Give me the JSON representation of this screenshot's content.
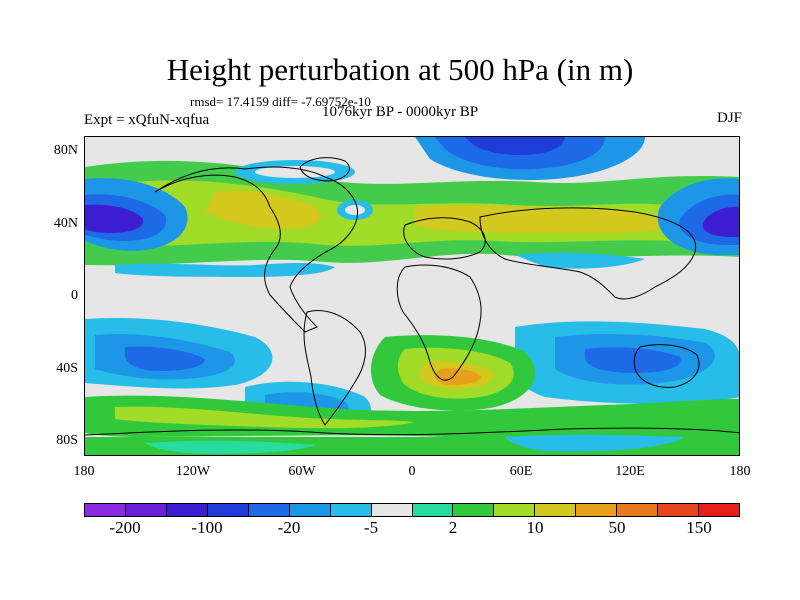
{
  "figure": {
    "title": "Height perturbation at 500 hPa (in m)",
    "stats": "rmsd= 17.4159 diff= -7.69752e-10",
    "experiment": "Expt = xQfuN-xqfua",
    "period": "1076kyr BP - 0000kyr BP",
    "season": "DJF"
  },
  "map": {
    "x_ticks": [
      "180",
      "120W",
      "60W",
      "0",
      "60E",
      "120E",
      "180"
    ],
    "y_ticks": [
      "80N",
      "40N",
      "0",
      "40S",
      "80S"
    ]
  },
  "colorbar": {
    "colors": [
      "#8a2be2",
      "#6a1ed8",
      "#3c1ed0",
      "#1e3cd8",
      "#1e6ae6",
      "#1e96e8",
      "#28bce8",
      "#e6e6e6",
      "#28dca0",
      "#32c83c",
      "#a0dc28",
      "#d2c81e",
      "#e6a01e",
      "#e6781e",
      "#e6461e",
      "#e61e1e"
    ],
    "labels": [
      "-200",
      "-100",
      "-20",
      "-5",
      "2",
      "10",
      "50",
      "150"
    ]
  }
}
